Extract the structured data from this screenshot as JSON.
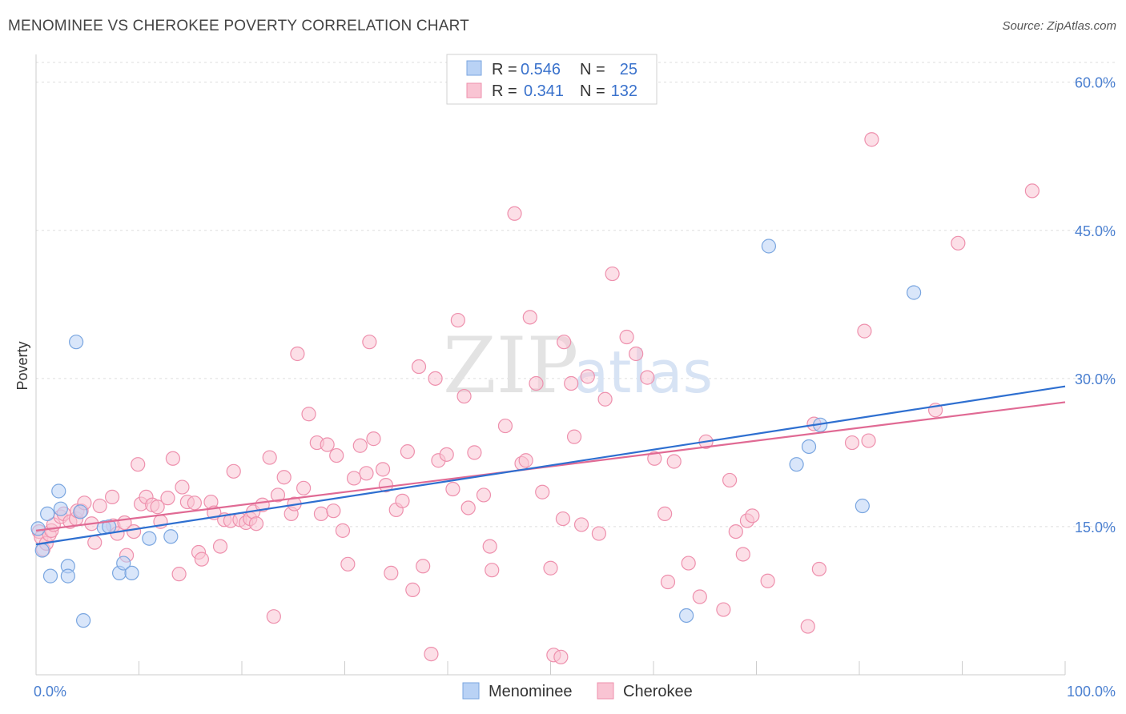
{
  "title": "MENOMINEE VS CHEROKEE POVERTY CORRELATION CHART",
  "source": "Source: ZipAtlas.com",
  "watermark": {
    "zip": "ZIP",
    "atlas": "atlas"
  },
  "legend": {
    "rows": [
      {
        "r_label": "R =",
        "r_value": "0.546",
        "n_label": "N =",
        "n_value": "25"
      },
      {
        "r_label": "R =",
        "r_value": "0.341",
        "n_label": "N =",
        "n_value": "132"
      }
    ]
  },
  "colors": {
    "menominee_fill": "#b9d2f5",
    "menominee_stroke": "#7aa6e0",
    "menominee_line": "#2e6fd0",
    "cherokee_fill": "#f9c4d3",
    "cherokee_stroke": "#ee90ad",
    "cherokee_line": "#e06a94",
    "grid": "#dddddd",
    "axis": "#cccccc"
  },
  "chart_data": {
    "type": "scatter",
    "title": "MENOMINEE VS CHEROKEE POVERTY CORRELATION CHART",
    "xlabel": "",
    "ylabel": "Poverty",
    "xlim": [
      0,
      100
    ],
    "ylim": [
      0,
      62
    ],
    "x_tick_labels": [
      "0.0%",
      "100.0%"
    ],
    "y_ticks": [
      15,
      30,
      45,
      60
    ],
    "y_tick_labels": [
      "15.0%",
      "30.0%",
      "45.0%",
      "60.0%"
    ],
    "grid": true,
    "legend_position": "top-center",
    "series": [
      {
        "name": "Menominee",
        "points": [
          [
            0.2,
            14.8
          ],
          [
            0.6,
            12.6
          ],
          [
            1.1,
            16.3
          ],
          [
            1.4,
            10.0
          ],
          [
            2.2,
            18.6
          ],
          [
            2.4,
            16.8
          ],
          [
            3.1,
            11.0
          ],
          [
            3.1,
            10.0
          ],
          [
            3.9,
            33.7
          ],
          [
            4.3,
            16.5
          ],
          [
            4.6,
            5.5
          ],
          [
            6.6,
            14.9
          ],
          [
            7.1,
            15.0
          ],
          [
            8.1,
            10.3
          ],
          [
            8.5,
            11.3
          ],
          [
            9.3,
            10.3
          ],
          [
            11.0,
            13.8
          ],
          [
            13.1,
            14.0
          ],
          [
            63.2,
            6.0
          ],
          [
            71.2,
            43.4
          ],
          [
            73.9,
            21.3
          ],
          [
            75.1,
            23.1
          ],
          [
            76.2,
            25.3
          ],
          [
            80.3,
            17.1
          ],
          [
            85.3,
            38.7
          ]
        ],
        "trend": {
          "x": [
            0,
            100
          ],
          "y": [
            13.2,
            29.2
          ]
        }
      },
      {
        "name": "Cherokee",
        "points": [
          [
            0.3,
            14.5
          ],
          [
            0.5,
            13.9
          ],
          [
            0.7,
            12.7
          ],
          [
            1.0,
            13.3
          ],
          [
            1.3,
            14.2
          ],
          [
            1.5,
            14.6
          ],
          [
            1.7,
            15.2
          ],
          [
            2.4,
            16.0
          ],
          [
            2.7,
            16.3
          ],
          [
            3.3,
            15.5
          ],
          [
            3.9,
            15.8
          ],
          [
            4.0,
            16.6
          ],
          [
            4.4,
            16.6
          ],
          [
            4.7,
            17.4
          ],
          [
            5.4,
            15.3
          ],
          [
            5.7,
            13.4
          ],
          [
            6.2,
            17.1
          ],
          [
            7.4,
            18.0
          ],
          [
            7.5,
            15.1
          ],
          [
            7.9,
            14.3
          ],
          [
            8.6,
            15.4
          ],
          [
            8.8,
            12.1
          ],
          [
            9.5,
            14.5
          ],
          [
            9.9,
            21.3
          ],
          [
            10.2,
            17.3
          ],
          [
            10.7,
            18.0
          ],
          [
            11.3,
            17.2
          ],
          [
            11.8,
            17.0
          ],
          [
            12.1,
            15.5
          ],
          [
            12.8,
            17.9
          ],
          [
            13.3,
            21.9
          ],
          [
            13.9,
            10.2
          ],
          [
            14.2,
            19.0
          ],
          [
            14.7,
            17.5
          ],
          [
            15.4,
            17.4
          ],
          [
            15.8,
            12.4
          ],
          [
            16.1,
            11.7
          ],
          [
            17.0,
            17.5
          ],
          [
            17.3,
            16.4
          ],
          [
            17.9,
            13.0
          ],
          [
            18.3,
            15.7
          ],
          [
            18.9,
            15.6
          ],
          [
            19.2,
            20.6
          ],
          [
            19.8,
            15.7
          ],
          [
            20.4,
            15.4
          ],
          [
            20.8,
            15.8
          ],
          [
            21.1,
            16.5
          ],
          [
            21.4,
            15.3
          ],
          [
            22.0,
            17.2
          ],
          [
            22.7,
            22.0
          ],
          [
            23.1,
            5.9
          ],
          [
            23.5,
            18.2
          ],
          [
            24.1,
            20.0
          ],
          [
            24.8,
            16.3
          ],
          [
            25.1,
            17.3
          ],
          [
            25.4,
            32.5
          ],
          [
            26.0,
            18.9
          ],
          [
            26.5,
            26.4
          ],
          [
            27.3,
            23.5
          ],
          [
            27.7,
            16.3
          ],
          [
            28.3,
            23.3
          ],
          [
            28.9,
            16.6
          ],
          [
            29.2,
            22.2
          ],
          [
            29.8,
            14.6
          ],
          [
            30.3,
            11.2
          ],
          [
            30.9,
            19.9
          ],
          [
            31.5,
            23.2
          ],
          [
            32.1,
            20.4
          ],
          [
            32.4,
            33.7
          ],
          [
            32.8,
            23.9
          ],
          [
            33.7,
            20.8
          ],
          [
            34.0,
            19.2
          ],
          [
            34.5,
            10.3
          ],
          [
            35.0,
            16.7
          ],
          [
            35.6,
            17.6
          ],
          [
            36.1,
            22.6
          ],
          [
            36.6,
            8.6
          ],
          [
            37.2,
            31.2
          ],
          [
            37.6,
            11.0
          ],
          [
            38.4,
            2.1
          ],
          [
            38.8,
            30.0
          ],
          [
            39.1,
            21.7
          ],
          [
            39.9,
            22.3
          ],
          [
            40.5,
            18.8
          ],
          [
            41.0,
            35.9
          ],
          [
            41.6,
            28.2
          ],
          [
            42.0,
            16.9
          ],
          [
            42.6,
            22.5
          ],
          [
            43.5,
            18.2
          ],
          [
            44.1,
            13.0
          ],
          [
            44.3,
            10.6
          ],
          [
            45.6,
            25.2
          ],
          [
            46.5,
            46.7
          ],
          [
            47.2,
            21.4
          ],
          [
            47.6,
            21.7
          ],
          [
            48.0,
            36.2
          ],
          [
            48.6,
            29.5
          ],
          [
            49.2,
            18.5
          ],
          [
            50.0,
            10.8
          ],
          [
            50.3,
            2.0
          ],
          [
            51.0,
            1.8
          ],
          [
            51.2,
            15.8
          ],
          [
            51.3,
            33.7
          ],
          [
            52.0,
            29.5
          ],
          [
            52.3,
            24.1
          ],
          [
            53.0,
            15.2
          ],
          [
            53.6,
            30.2
          ],
          [
            54.7,
            14.3
          ],
          [
            55.3,
            27.9
          ],
          [
            56.0,
            40.6
          ],
          [
            57.4,
            34.2
          ],
          [
            58.3,
            32.5
          ],
          [
            59.4,
            30.1
          ],
          [
            60.1,
            21.9
          ],
          [
            61.1,
            16.3
          ],
          [
            61.4,
            9.4
          ],
          [
            62.0,
            21.6
          ],
          [
            63.4,
            11.3
          ],
          [
            64.5,
            7.9
          ],
          [
            65.1,
            23.6
          ],
          [
            66.8,
            6.6
          ],
          [
            67.4,
            19.7
          ],
          [
            68.0,
            14.5
          ],
          [
            68.7,
            12.2
          ],
          [
            69.1,
            15.6
          ],
          [
            69.6,
            16.1
          ],
          [
            71.1,
            9.5
          ],
          [
            75.0,
            4.9
          ],
          [
            75.6,
            25.4
          ],
          [
            76.1,
            10.7
          ],
          [
            79.3,
            23.5
          ],
          [
            80.5,
            34.8
          ],
          [
            80.9,
            23.7
          ],
          [
            81.2,
            54.2
          ],
          [
            87.4,
            26.8
          ],
          [
            89.6,
            43.7
          ],
          [
            96.8,
            49.0
          ]
        ],
        "trend": {
          "x": [
            0,
            100
          ],
          "y": [
            14.6,
            27.6
          ]
        }
      }
    ]
  }
}
